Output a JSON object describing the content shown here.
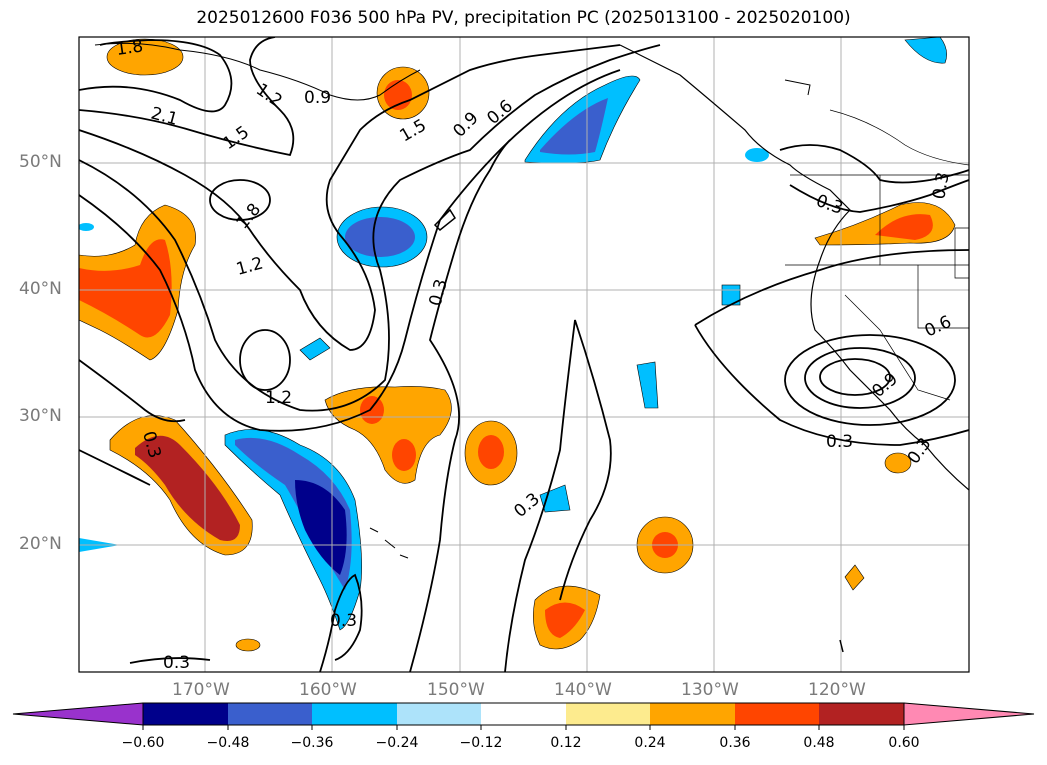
{
  "title": "2025012600 F036 500 hPa PV, precipitation PC (2025013100 - 2025020100)",
  "map": {
    "lat_labels": [
      "50°N",
      "40°N",
      "30°N",
      "20°N"
    ],
    "lon_labels": [
      "170°W",
      "160°W",
      "150°W",
      "140°W",
      "130°W",
      "120°W"
    ],
    "gridlines": true,
    "contour_labels": [
      "1.8",
      "2.1",
      "1.5",
      "1.2",
      "0.9",
      "1.5",
      "0.9",
      "0.6",
      "1.8",
      "1.2",
      "0.3",
      "1.2",
      "0.3",
      "0.3",
      "0.3",
      "0.3",
      "0.3",
      "0.3",
      "0.6",
      "0.9",
      "0.3",
      "0.3"
    ],
    "contour_line_color": "#000000",
    "shading_variable": "precipitation PC"
  },
  "colorbar": {
    "tick_labels": [
      "−0.60",
      "−0.48",
      "−0.36",
      "−0.24",
      "−0.12",
      "0.12",
      "0.24",
      "0.36",
      "0.48",
      "0.60"
    ],
    "colors": [
      "#9932CC",
      "#00008B",
      "#3A5FCD",
      "#00BFFF",
      "#ADE3FA",
      "#FFFFFF",
      "#FDEB8E",
      "#FFA500",
      "#FF4500",
      "#B22222",
      "#FF89B3"
    ]
  }
}
